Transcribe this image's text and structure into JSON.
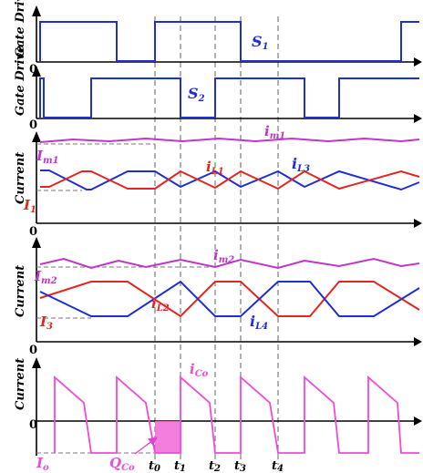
{
  "panels": {
    "gate1": {
      "ylabel": "Gate Drive",
      "zero": "0",
      "signal": {
        "main": "S",
        "sub": "1"
      }
    },
    "gate2": {
      "ylabel": "Gate Drive",
      "zero": "0",
      "signal": {
        "main": "S",
        "sub": "2"
      }
    },
    "current1": {
      "ylabel": "Current",
      "zero": "0",
      "im": {
        "main": "I",
        "sub": "m1"
      },
      "imin": {
        "main": "I",
        "sub": "1"
      },
      "iL_a": {
        "main": "i",
        "sub": "L1"
      },
      "iL_b": {
        "main": "i",
        "sub": "L3"
      },
      "im_small": {
        "main": "i",
        "sub": "m1"
      }
    },
    "current2": {
      "ylabel": "Current",
      "zero": "0",
      "im": {
        "main": "I",
        "sub": "m2"
      },
      "imin": {
        "main": "I",
        "sub": "3"
      },
      "iL_a": {
        "main": "i",
        "sub": "L2"
      },
      "iL_b": {
        "main": "i",
        "sub": "L4"
      },
      "im_small": {
        "main": "i",
        "sub": "m2"
      }
    },
    "current3": {
      "ylabel": "Current",
      "zero": "0",
      "ico": {
        "main": "i",
        "sub": "Co"
      },
      "io": {
        "main": "I",
        "sub": "o"
      },
      "qco": {
        "main": "Q",
        "sub": "Co"
      }
    }
  },
  "time_marks": [
    {
      "main": "t",
      "sub": "0"
    },
    {
      "main": "t",
      "sub": "1"
    },
    {
      "main": "t",
      "sub": "2"
    },
    {
      "main": "t",
      "sub": "3"
    },
    {
      "main": "t",
      "sub": "4"
    }
  ],
  "colors": {
    "s_signal": "#1f2fd6",
    "il_blue": "#1f2fd6",
    "il_red": "#e3261f",
    "im": "#c036c9",
    "ico": "#f04ad8"
  }
}
